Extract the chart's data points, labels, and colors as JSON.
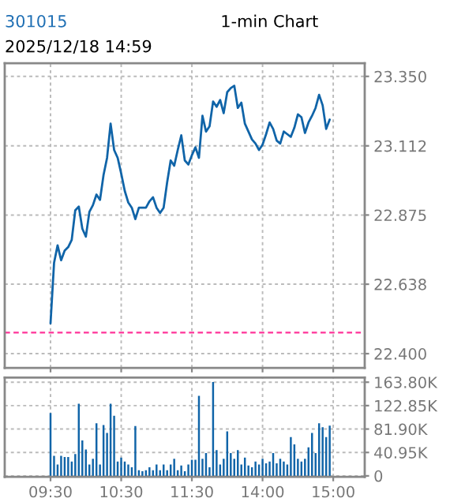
{
  "chart_data": [
    {
      "type": "line",
      "title": "301015",
      "subtitle": "1-min Chart",
      "annotations": [
        "2025/12/18 14:59"
      ],
      "categories": [
        null,
        null,
        null,
        null,
        null,
        null,
        null,
        null,
        null,
        null,
        null,
        null,
        null,
        null,
        null,
        null,
        null,
        null,
        null,
        null,
        null,
        null,
        null,
        null,
        null,
        null,
        null,
        null,
        null,
        null,
        null,
        null,
        null,
        null,
        null,
        null,
        null,
        null,
        null,
        null,
        null,
        null,
        null,
        null,
        null,
        null,
        null,
        null,
        null,
        null,
        null,
        null,
        null,
        null,
        null,
        null,
        null,
        null,
        null,
        null,
        null,
        null,
        null,
        null,
        null,
        null,
        null,
        null,
        null,
        null,
        null,
        null,
        null,
        null,
        null,
        null,
        null,
        null,
        null,
        null,
        null
      ],
      "series": [
        {
          "color": "#1064a8",
          "values": [
            22.504,
            22.711,
            22.771,
            22.72,
            22.753,
            22.765,
            22.79,
            22.891,
            22.904,
            22.828,
            22.801,
            22.886,
            22.909,
            22.945,
            22.927,
            23.012,
            23.071,
            23.188,
            23.098,
            23.071,
            23.017,
            22.958,
            22.918,
            22.9,
            22.861,
            22.9,
            22.9,
            22.9,
            22.922,
            22.936,
            22.9,
            22.882,
            22.9,
            22.987,
            23.062,
            23.044,
            23.098,
            23.148,
            23.062,
            23.048,
            23.08,
            23.107,
            23.071,
            23.215,
            23.161,
            23.179,
            23.264,
            23.246,
            23.269,
            23.224,
            23.296,
            23.31,
            23.318,
            23.242,
            23.26,
            23.188,
            23.161,
            23.134,
            23.12,
            23.098,
            23.116,
            23.152,
            23.192,
            23.17,
            23.13,
            23.12,
            23.161,
            23.152,
            23.143,
            23.174,
            23.22,
            23.21,
            23.156,
            23.192,
            23.215,
            23.242,
            23.287,
            23.251,
            23.17,
            23.202,
            null
          ]
        }
      ],
      "ylim": [
        22.351,
        23.395
      ],
      "yticks": [
        {
          "value": 22.4,
          "label": "22.400"
        },
        {
          "value": 22.638,
          "label": "22.638"
        },
        {
          "value": 22.875,
          "label": "22.875"
        },
        {
          "value": 23.112,
          "label": "23.112"
        },
        {
          "value": 23.35,
          "label": "23.350"
        }
      ],
      "ref_lines": [
        {
          "axis": "y",
          "value": 22.472,
          "color": "#ff3399",
          "line_style": "dashed"
        }
      ],
      "grid": true,
      "tick_labels": "y",
      "line_style": "solid",
      "marker": "none"
    },
    {
      "type": "bar",
      "categories": [
        "09:30",
        null,
        null,
        null,
        null,
        null,
        null,
        null,
        null,
        null,
        null,
        null,
        null,
        null,
        null,
        null,
        null,
        null,
        null,
        null,
        "10:30",
        null,
        null,
        null,
        null,
        null,
        null,
        null,
        null,
        null,
        null,
        null,
        null,
        null,
        null,
        null,
        null,
        null,
        null,
        null,
        "11:30",
        null,
        null,
        null,
        null,
        null,
        null,
        null,
        null,
        null,
        null,
        null,
        null,
        null,
        null,
        null,
        null,
        null,
        null,
        null,
        "14:00",
        null,
        null,
        null,
        null,
        null,
        null,
        null,
        null,
        null,
        null,
        null,
        null,
        null,
        null,
        null,
        null,
        null,
        null,
        null,
        "15:00"
      ],
      "series": [
        {
          "color": "#1064a8",
          "values": [
            110,
            35,
            20,
            35,
            33,
            33,
            25,
            38,
            126,
            62,
            46,
            20,
            30,
            92,
            20,
            89,
            75,
            126,
            105,
            25,
            32,
            25,
            20,
            15,
            87,
            10,
            8,
            10,
            15,
            10,
            20,
            10,
            20,
            10,
            20,
            30,
            10,
            18,
            8,
            20,
            28,
            28,
            140,
            30,
            40,
            15,
            164,
            45,
            20,
            30,
            78,
            40,
            30,
            45,
            20,
            32,
            18,
            15,
            25,
            20,
            30,
            22,
            25,
            40,
            22,
            30,
            25,
            20,
            68,
            55,
            30,
            25,
            30,
            50,
            75,
            40,
            92,
            85,
            68,
            88,
            null
          ]
        }
      ],
      "ylim": [
        -1.8,
        172
      ],
      "yticks": [
        0,
        {
          "value": 40.95,
          "label": "40.95K"
        },
        {
          "value": 81.9,
          "label": "81.90K"
        },
        {
          "value": 122.85,
          "label": "122.85K"
        },
        {
          "value": 163.8,
          "label": "163.80K"
        }
      ],
      "grid": true
    }
  ]
}
